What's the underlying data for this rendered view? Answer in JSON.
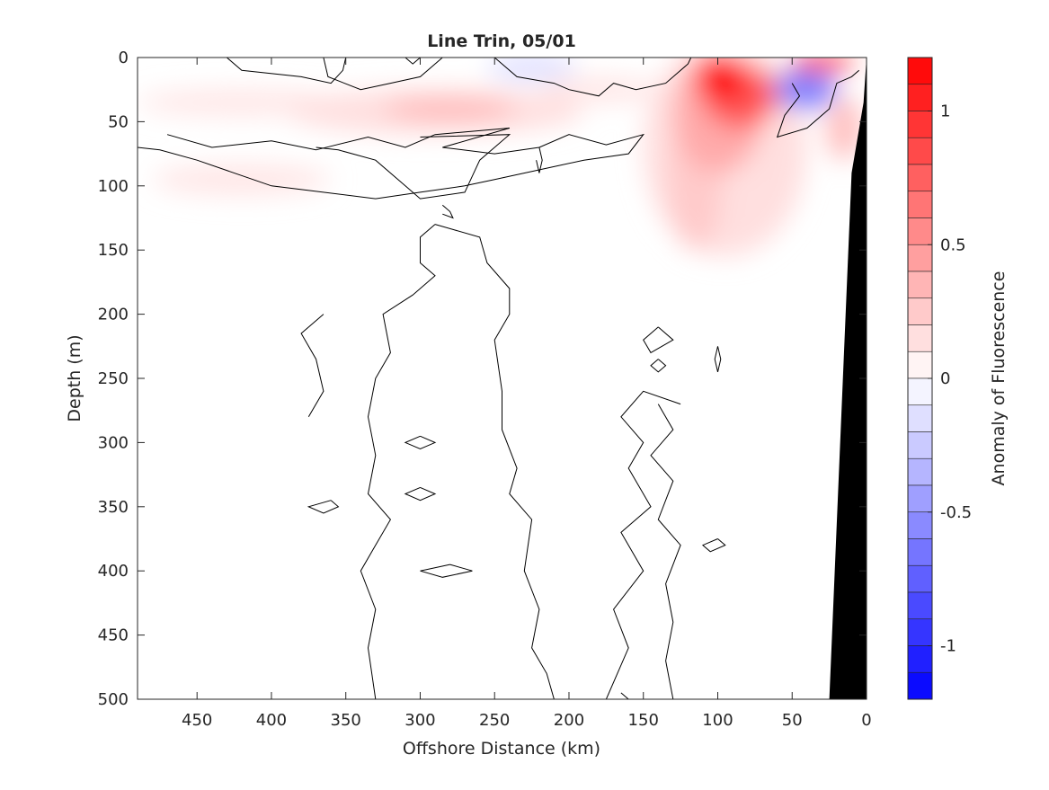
{
  "chart_data": {
    "type": "heatmap",
    "title": "Line Trin, 05/01",
    "xlabel": "Offshore Distance (km)",
    "ylabel": "Depth (m)",
    "colorbar_label": "Anomaly of Fluorescence",
    "xlim": [
      490,
      0
    ],
    "ylim": [
      500,
      0
    ],
    "x_ticks": [
      450,
      400,
      350,
      300,
      250,
      200,
      150,
      100,
      50,
      0
    ],
    "y_ticks": [
      0,
      50,
      100,
      150,
      200,
      250,
      300,
      350,
      400,
      450,
      500
    ],
    "colorbar_range": [
      -1.2,
      1.2
    ],
    "colorbar_ticks": [
      1,
      0.5,
      0,
      -0.5,
      -1
    ],
    "colorbar_tick_labels": [
      "1",
      "0.5",
      "0",
      "-0.5",
      "-1"
    ],
    "colorbar_levels": [
      1.2,
      1.1,
      1.0,
      0.9,
      0.8,
      0.7,
      0.6,
      0.5,
      0.4,
      0.3,
      0.2,
      0.1,
      0.0,
      -0.1,
      -0.2,
      -0.3,
      -0.4,
      -0.5,
      -0.6,
      -0.7,
      -0.8,
      -0.9,
      -1.0,
      -1.1,
      -1.2
    ],
    "colormap": {
      "positive": "#ff0000",
      "zero": "#ffffff",
      "negative": "#0000ff"
    },
    "grid": false,
    "colorbar_position": "right",
    "features": [
      {
        "name": "surface-max",
        "x": 98,
        "y": 15,
        "value": 1.2,
        "rx": 18,
        "ry": 18
      },
      {
        "name": "surface-max-ext",
        "x": 85,
        "y": 30,
        "value": 0.8,
        "rx": 25,
        "ry": 25
      },
      {
        "name": "plume-core",
        "x": 100,
        "y": 45,
        "value": 0.4,
        "rx": 30,
        "ry": 45
      },
      {
        "name": "plume-stem",
        "x": 115,
        "y": 95,
        "value": 0.25,
        "rx": 18,
        "ry": 55
      },
      {
        "name": "plume-broad",
        "x": 95,
        "y": 70,
        "value": 0.15,
        "rx": 55,
        "ry": 85
      },
      {
        "name": "offshore-band",
        "x": 290,
        "y": 42,
        "value": 0.15,
        "rx": 100,
        "ry": 18
      },
      {
        "name": "offshore-band-core",
        "x": 280,
        "y": 40,
        "value": 0.35,
        "rx": 45,
        "ry": 8
      },
      {
        "name": "far-band",
        "x": 420,
        "y": 35,
        "value": 0.12,
        "rx": 70,
        "ry": 10
      },
      {
        "name": "deep-band",
        "x": 420,
        "y": 95,
        "value": 0.12,
        "rx": 60,
        "ry": 12
      },
      {
        "name": "upper-band",
        "x": 180,
        "y": 25,
        "value": 0.12,
        "rx": 40,
        "ry": 10
      },
      {
        "name": "nearshore-max",
        "x": 30,
        "y": 4,
        "value": 0.9,
        "rx": 22,
        "ry": 7
      },
      {
        "name": "nearshore-deep",
        "x": 15,
        "y": 55,
        "value": 0.3,
        "rx": 12,
        "ry": 25
      },
      {
        "name": "nearshore-min",
        "x": 42,
        "y": 25,
        "value": -0.6,
        "rx": 22,
        "ry": 15
      },
      {
        "name": "surface-min",
        "x": 225,
        "y": 8,
        "value": -0.15,
        "rx": 30,
        "ry": 10
      }
    ],
    "contours_km_m": [
      [
        [
          430,
          0
        ],
        [
          420,
          10
        ],
        [
          380,
          15
        ],
        [
          360,
          20
        ],
        [
          352,
          10
        ],
        [
          350,
          0
        ]
      ],
      [
        [
          365,
          0
        ],
        [
          362,
          15
        ],
        [
          340,
          25
        ],
        [
          320,
          20
        ],
        [
          300,
          15
        ],
        [
          285,
          0
        ]
      ],
      [
        [
          310,
          0
        ],
        [
          305,
          5
        ],
        [
          300,
          0
        ]
      ],
      [
        [
          250,
          0
        ],
        [
          235,
          15
        ],
        [
          210,
          20
        ],
        [
          200,
          25
        ],
        [
          180,
          30
        ],
        [
          170,
          20
        ],
        [
          155,
          25
        ],
        [
          135,
          20
        ],
        [
          120,
          5
        ],
        [
          118,
          0
        ]
      ],
      [
        [
          470,
          60
        ],
        [
          440,
          70
        ],
        [
          400,
          65
        ],
        [
          370,
          72
        ],
        [
          335,
          62
        ],
        [
          310,
          70
        ],
        [
          290,
          60
        ],
        [
          240,
          55
        ],
        [
          285,
          70
        ],
        [
          250,
          75
        ],
        [
          220,
          70
        ],
        [
          200,
          60
        ],
        [
          175,
          68
        ],
        [
          150,
          60
        ],
        [
          160,
          75
        ],
        [
          190,
          80
        ],
        [
          210,
          85
        ],
        [
          250,
          95
        ],
        [
          270,
          100
        ],
        [
          300,
          105
        ],
        [
          330,
          110
        ],
        [
          400,
          100
        ],
        [
          450,
          80
        ],
        [
          475,
          72
        ],
        [
          490,
          70
        ]
      ],
      [
        [
          370,
          70
        ],
        [
          355,
          72
        ],
        [
          330,
          80
        ],
        [
          310,
          100
        ],
        [
          300,
          110
        ],
        [
          270,
          105
        ],
        [
          260,
          80
        ],
        [
          240,
          60
        ],
        [
          300,
          62
        ]
      ],
      [
        [
          220,
          70
        ],
        [
          218,
          80
        ],
        [
          220,
          90
        ],
        [
          222,
          80
        ]
      ],
      [
        [
          285,
          115
        ],
        [
          280,
          120
        ],
        [
          278,
          125
        ],
        [
          285,
          122
        ]
      ],
      [
        [
          290,
          130
        ],
        [
          300,
          140
        ],
        [
          300,
          160
        ],
        [
          290,
          170
        ],
        [
          305,
          185
        ],
        [
          325,
          200
        ],
        [
          320,
          230
        ],
        [
          330,
          250
        ],
        [
          335,
          280
        ],
        [
          330,
          310
        ],
        [
          335,
          340
        ],
        [
          320,
          360
        ],
        [
          330,
          380
        ],
        [
          340,
          400
        ],
        [
          330,
          430
        ],
        [
          335,
          460
        ],
        [
          330,
          500
        ]
      ],
      [
        [
          290,
          130
        ],
        [
          260,
          140
        ],
        [
          255,
          160
        ],
        [
          240,
          180
        ],
        [
          240,
          200
        ],
        [
          250,
          220
        ],
        [
          245,
          260
        ],
        [
          245,
          290
        ],
        [
          235,
          320
        ],
        [
          240,
          340
        ],
        [
          225,
          360
        ],
        [
          230,
          400
        ],
        [
          220,
          430
        ],
        [
          225,
          460
        ],
        [
          215,
          480
        ],
        [
          210,
          500
        ]
      ],
      [
        [
          365,
          200
        ],
        [
          380,
          215
        ],
        [
          370,
          235
        ],
        [
          365,
          260
        ],
        [
          375,
          280
        ]
      ],
      [
        [
          140,
          210
        ],
        [
          130,
          220
        ],
        [
          145,
          230
        ],
        [
          150,
          220
        ],
        [
          140,
          210
        ]
      ],
      [
        [
          140,
          235
        ],
        [
          135,
          240
        ],
        [
          140,
          245
        ],
        [
          145,
          240
        ],
        [
          140,
          235
        ]
      ],
      [
        [
          125,
          270
        ],
        [
          150,
          260
        ],
        [
          165,
          280
        ],
        [
          150,
          300
        ],
        [
          160,
          320
        ],
        [
          145,
          350
        ],
        [
          165,
          370
        ],
        [
          150,
          400
        ],
        [
          170,
          430
        ],
        [
          160,
          460
        ],
        [
          175,
          500
        ]
      ],
      [
        [
          140,
          270
        ],
        [
          130,
          290
        ],
        [
          145,
          310
        ],
        [
          130,
          330
        ],
        [
          140,
          360
        ],
        [
          125,
          380
        ],
        [
          135,
          410
        ],
        [
          130,
          440
        ],
        [
          135,
          470
        ],
        [
          130,
          500
        ]
      ],
      [
        [
          300,
          295
        ],
        [
          290,
          300
        ],
        [
          300,
          305
        ],
        [
          310,
          300
        ],
        [
          300,
          295
        ]
      ],
      [
        [
          300,
          335
        ],
        [
          290,
          340
        ],
        [
          300,
          345
        ],
        [
          310,
          340
        ],
        [
          300,
          335
        ]
      ],
      [
        [
          360,
          345
        ],
        [
          355,
          350
        ],
        [
          365,
          355
        ],
        [
          375,
          350
        ],
        [
          360,
          345
        ]
      ],
      [
        [
          280,
          395
        ],
        [
          265,
          400
        ],
        [
          285,
          405
        ],
        [
          300,
          400
        ],
        [
          280,
          395
        ]
      ],
      [
        [
          100,
          375
        ],
        [
          95,
          380
        ],
        [
          105,
          385
        ],
        [
          110,
          380
        ],
        [
          100,
          375
        ]
      ],
      [
        [
          100,
          225
        ],
        [
          98,
          235
        ],
        [
          100,
          245
        ],
        [
          102,
          235
        ],
        [
          100,
          225
        ]
      ],
      [
        [
          20,
          488
        ],
        [
          15,
          495
        ],
        [
          25,
          500
        ]
      ],
      [
        [
          50,
          20
        ],
        [
          45,
          30
        ],
        [
          55,
          45
        ],
        [
          60,
          62
        ],
        [
          40,
          55
        ],
        [
          25,
          40
        ],
        [
          20,
          20
        ],
        [
          10,
          15
        ],
        [
          5,
          10
        ]
      ],
      [
        [
          165,
          495
        ],
        [
          160,
          500
        ],
        [
          180,
          500
        ]
      ]
    ],
    "bathymetry_km_m": [
      [
        0,
        0
      ],
      [
        0,
        500
      ],
      [
        25,
        500
      ],
      [
        10,
        90
      ],
      [
        2,
        35
      ],
      [
        0,
        0
      ]
    ]
  }
}
